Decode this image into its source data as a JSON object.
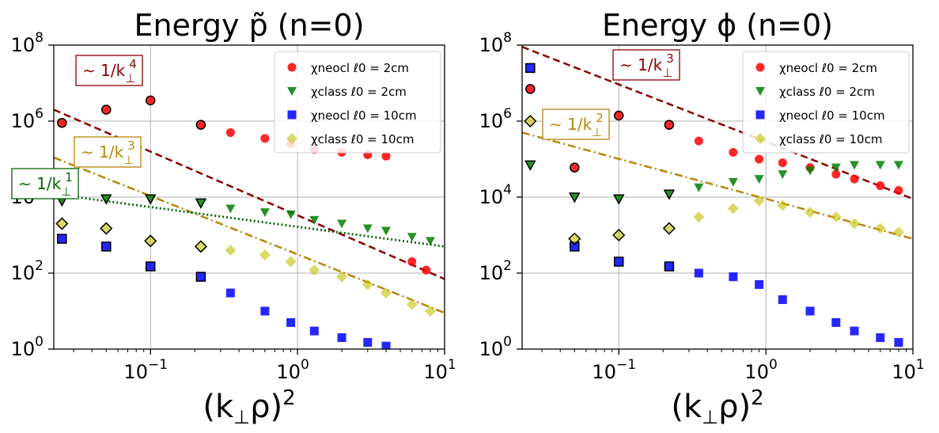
{
  "figure": {
    "xlabel": "(k⊥ρ)²",
    "x_ticks": [
      {
        "value": 0.1,
        "label": "10",
        "exp": "−1"
      },
      {
        "value": 1,
        "label": "10",
        "exp": "0"
      },
      {
        "value": 10,
        "label": "10",
        "exp": "1"
      }
    ],
    "y_ticks": [
      {
        "value": 1,
        "label": "10",
        "exp": "0"
      },
      {
        "value": 100,
        "label": "10",
        "exp": "2"
      },
      {
        "value": 10000,
        "label": "10",
        "exp": "4"
      },
      {
        "value": 1000000,
        "label": "10",
        "exp": "6"
      },
      {
        "value": 100000000,
        "label": "10",
        "exp": "8"
      }
    ],
    "legend": [
      {
        "name": "χneocl ℓ0 = 2cm",
        "marker": "circle",
        "color": "#ff0000"
      },
      {
        "name": "χclass ℓ0 = 2cm",
        "marker": "triangle",
        "color": "#008000"
      },
      {
        "name": "χneocl ℓ0 = 10cm",
        "marker": "square",
        "color": "#0000ff"
      },
      {
        "name": "χclass ℓ0 = 10cm",
        "marker": "diamond",
        "color": "#bfbf00"
      }
    ],
    "colors": {
      "red": "#ff0000",
      "green": "#008000",
      "blue": "#0000ff",
      "olive": "#bfbf00",
      "darkred": "#8b0000",
      "goldline": "#b8860b",
      "darkgreen": "#006400"
    }
  },
  "chart_data": [
    {
      "type": "scatter",
      "title": "Energy p̃ (n=0)",
      "xlabel": "(k⊥ρ)²",
      "ylabel": "",
      "xscale": "log",
      "yscale": "log",
      "xlim": [
        0.022,
        10
      ],
      "ylim": [
        1,
        100000000
      ],
      "grid": true,
      "legend_position": "top-right",
      "series": [
        {
          "name": "χneocl ℓ0 = 2cm",
          "x": [
            0.025,
            0.05,
            0.1,
            0.22,
            0.35,
            0.6,
            0.9,
            1.3,
            2,
            3,
            4,
            6,
            7.5
          ],
          "y": [
            900000,
            2000000,
            3500000,
            800000,
            500000,
            350000,
            250000,
            180000,
            150000,
            130000,
            120000,
            200,
            120
          ]
        },
        {
          "name": "χclass ℓ0 = 2cm",
          "x": [
            0.025,
            0.05,
            0.1,
            0.22,
            0.35,
            0.6,
            0.9,
            1.3,
            2,
            3,
            4,
            6,
            8
          ],
          "y": [
            8000,
            9000,
            9000,
            7000,
            5000,
            4000,
            3500,
            2500,
            2000,
            1500,
            1300,
            900,
            700
          ]
        },
        {
          "name": "χneocl ℓ0 = 10cm",
          "x": [
            0.025,
            0.05,
            0.1,
            0.22,
            0.35,
            0.6,
            0.9,
            1.3,
            2,
            3,
            4
          ],
          "y": [
            800,
            500,
            150,
            80,
            30,
            10,
            5,
            3,
            2,
            1.5,
            1.2
          ]
        },
        {
          "name": "χclass ℓ0 = 10cm",
          "x": [
            0.025,
            0.05,
            0.1,
            0.22,
            0.35,
            0.6,
            0.9,
            1.3,
            2,
            3,
            4,
            6,
            8
          ],
          "y": [
            2000,
            1500,
            700,
            500,
            400,
            300,
            200,
            120,
            80,
            50,
            30,
            15,
            10
          ]
        }
      ],
      "annotations": [
        {
          "text": "∼ 1/k⊥⁴",
          "base": "∼ 1/k",
          "sub": "⊥",
          "sup": "4",
          "color": "#8b0000",
          "style": "dashed",
          "line_from": [
            0.022,
            2000000
          ],
          "line_to": [
            10,
            70
          ]
        },
        {
          "text": "∼ 1/k⊥³",
          "base": "∼ 1/k",
          "sub": "⊥",
          "sup": "3",
          "color": "#b8860b",
          "style": "dashdot",
          "line_from": [
            0.022,
            110000
          ],
          "line_to": [
            10,
            9
          ]
        },
        {
          "text": "∼ 1/k⊥¹",
          "base": "∼ 1/k",
          "sub": "⊥",
          "sup": "1",
          "color": "#006400",
          "style": "dotted",
          "line_from": [
            0.022,
            12000
          ],
          "line_to": [
            10,
            500
          ]
        }
      ]
    },
    {
      "type": "scatter",
      "title": "Energy ϕ (n=0)",
      "xlabel": "(k⊥ρ)²",
      "ylabel": "",
      "xscale": "log",
      "yscale": "log",
      "xlim": [
        0.022,
        10
      ],
      "ylim": [
        1,
        100000000
      ],
      "grid": true,
      "legend_position": "top-right",
      "series": [
        {
          "name": "χneocl ℓ0 = 2cm",
          "x": [
            0.025,
            0.05,
            0.1,
            0.22,
            0.35,
            0.6,
            0.9,
            1.3,
            2,
            3,
            4,
            6,
            8
          ],
          "y": [
            7000000,
            60000,
            1400000,
            800000,
            300000,
            150000,
            100000,
            80000,
            60000,
            40000,
            30000,
            20000,
            15000
          ]
        },
        {
          "name": "χclass ℓ0 = 2cm",
          "x": [
            0.025,
            0.05,
            0.1,
            0.22,
            0.35,
            0.6,
            0.9,
            1.3,
            2,
            3,
            4,
            6,
            8
          ],
          "y": [
            70000,
            10000,
            9000,
            12000,
            18000,
            25000,
            30000,
            40000,
            50000,
            60000,
            70000,
            70000,
            70000
          ]
        },
        {
          "name": "χneocl ℓ0 = 10cm",
          "x": [
            0.025,
            0.05,
            0.1,
            0.22,
            0.35,
            0.6,
            0.9,
            1.3,
            2,
            3,
            4,
            6,
            8
          ],
          "y": [
            25000000,
            500,
            200,
            150,
            100,
            80,
            50,
            20,
            10,
            5,
            3,
            2,
            1.5
          ]
        },
        {
          "name": "χclass ℓ0 = 10cm",
          "x": [
            0.025,
            0.05,
            0.1,
            0.22,
            0.35,
            0.6,
            0.9,
            1.3,
            2,
            3,
            4,
            6,
            8
          ],
          "y": [
            1000000,
            800,
            1000,
            1500,
            3000,
            5000,
            8000,
            6000,
            4000,
            3000,
            2000,
            1500,
            1200
          ]
        }
      ],
      "annotations": [
        {
          "text": "∼ 1/k⊥³",
          "base": "∼ 1/k",
          "sub": "⊥",
          "sup": "3",
          "color": "#8b0000",
          "style": "dashed",
          "line_from": [
            0.022,
            90000000
          ],
          "line_to": [
            10,
            9000
          ]
        },
        {
          "text": "∼ 1/k⊥²",
          "base": "∼ 1/k",
          "sub": "⊥",
          "sup": "2",
          "color": "#b8860b",
          "style": "dashdot",
          "line_from": [
            0.022,
            500000
          ],
          "line_to": [
            10,
            800
          ]
        }
      ]
    }
  ]
}
